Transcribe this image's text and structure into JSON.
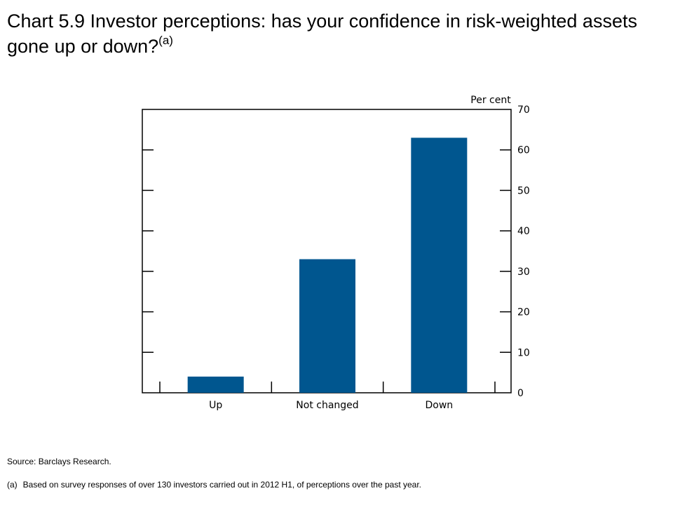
{
  "title": {
    "text": "Chart 5.9  Investor perceptions:  has your confidence in risk-weighted assets gone up or down?",
    "sup": "(a)"
  },
  "chart_data": {
    "type": "bar",
    "categories": [
      "Up",
      "Not changed",
      "Down"
    ],
    "values": [
      4,
      33,
      63
    ],
    "ylabel": "Per cent",
    "ylim": [
      0,
      70
    ],
    "yticks": [
      0,
      10,
      20,
      30,
      40,
      50,
      60,
      70
    ],
    "bar_color": "#00568f",
    "grid": false,
    "axis_side": "right"
  },
  "source": "Source: Barclays Research.",
  "footnote": {
    "mark": "(a)",
    "text": "Based on survey responses of over 130 investors carried out in 2012 H1, of perceptions over the past year."
  }
}
